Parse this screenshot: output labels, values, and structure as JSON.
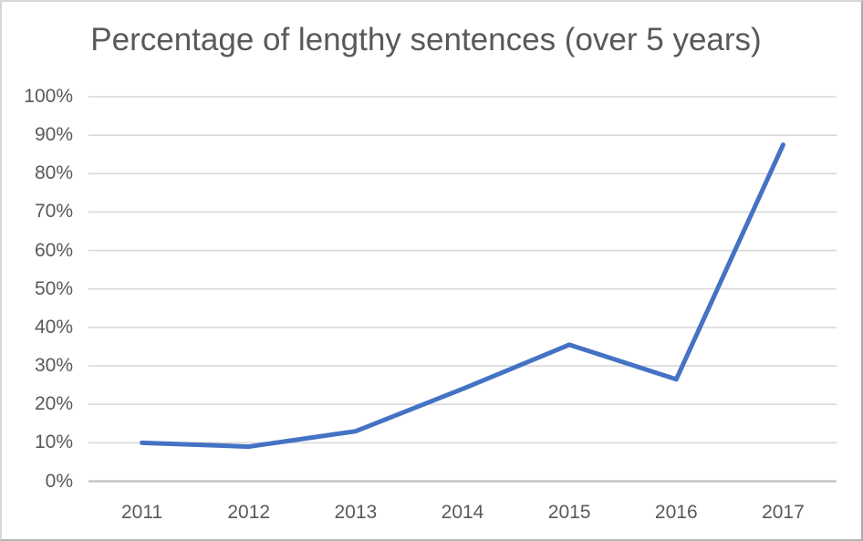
{
  "chart_data": {
    "type": "line",
    "title": "Percentage of lengthy sentences (over 5 years)",
    "categories": [
      "2011",
      "2012",
      "2013",
      "2014",
      "2015",
      "2016",
      "2017"
    ],
    "values": [
      10,
      9,
      13,
      24,
      35.5,
      26.5,
      87.5
    ],
    "xlabel": "",
    "ylabel": "",
    "ylim": [
      0,
      100
    ],
    "ytick_interval": 10,
    "ytick_labels": [
      "100%",
      "90%",
      "80%",
      "70%",
      "60%",
      "50%",
      "40%",
      "30%",
      "20%",
      "10%",
      "0%"
    ],
    "grid": true,
    "legend": false
  },
  "style": {
    "line_color": "#4472C4",
    "line_width": 5,
    "gridline_color": "#D9D9D9",
    "axis_line_color": "#BFBFBF",
    "label_color": "#595959",
    "title_color": "#595959",
    "background": "#FFFFFF"
  }
}
